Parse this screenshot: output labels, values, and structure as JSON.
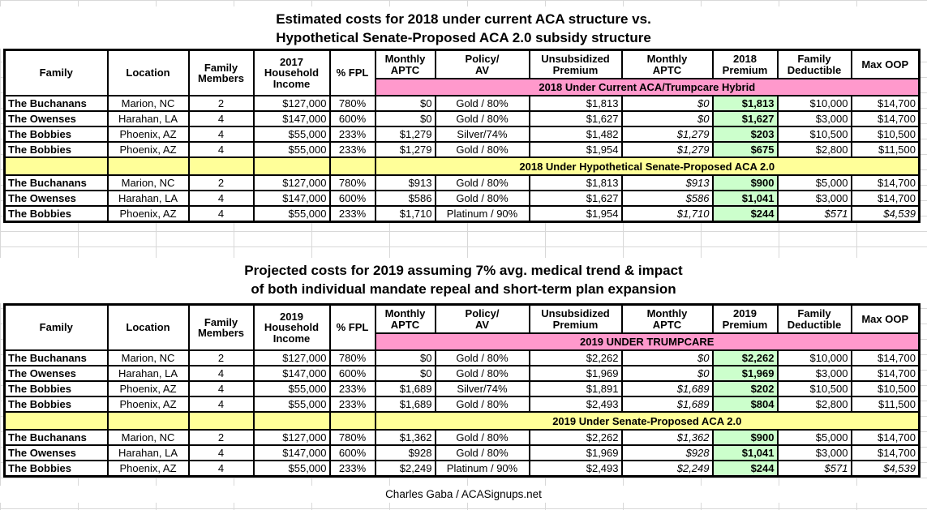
{
  "titles": {
    "table1_line1": "Estimated costs for 2018 under current ACA structure vs.",
    "table1_line2": "Hypothetical Senate-Proposed ACA 2.0 subsidy structure",
    "table2_line1": "Projected costs for 2019 assuming 7% avg. medical trend & impact",
    "table2_line2": "of both individual mandate repeal and short-term plan expansion"
  },
  "footer": "Charles Gaba / ACASignups.net",
  "colors": {
    "banner_pink": "#FF99CC",
    "banner_yellow": "#FFFF99",
    "premium_green": "#CCFFCC",
    "gridline": "#D8D8D8",
    "border": "#000000"
  },
  "tables": [
    {
      "id": "2018",
      "headers": [
        "Family",
        "Location",
        "Family\nMembers",
        "2017\nHousehold\nIncome",
        "% FPL",
        "Monthly\nAPTC",
        "Policy/\nAV",
        "Unsubsidized\nPremium",
        "Monthly\nAPTC",
        "2018\nPremium",
        "Family\nDeductible",
        "Max OOP"
      ],
      "sections": [
        {
          "banner": "2018 Under Current ACA/Trumpcare Hybrid",
          "style": "pink",
          "rows": [
            {
              "cells": [
                "The Buchanans",
                "Marion, NC",
                "2",
                "$127,000",
                "780%",
                "$0",
                "Gold / 80%",
                "$1,813",
                "$0",
                "$1,813",
                "$10,000",
                "$14,700"
              ],
              "italic_last_two": false
            },
            {
              "cells": [
                "The Owenses",
                "Harahan, LA",
                "4",
                "$147,000",
                "600%",
                "$0",
                "Gold / 80%",
                "$1,627",
                "$0",
                "$1,627",
                "$3,000",
                "$14,700"
              ],
              "italic_last_two": false
            },
            {
              "cells": [
                "The Bobbies",
                "Phoenix, AZ",
                "4",
                "$55,000",
                "233%",
                "$1,279",
                "Silver/74%",
                "$1,482",
                "$1,279",
                "$203",
                "$10,500",
                "$10,500"
              ],
              "italic_last_two": false
            },
            {
              "cells": [
                "The Bobbies",
                "Phoenix, AZ",
                "4",
                "$55,000",
                "233%",
                "$1,279",
                "Gold / 80%",
                "$1,954",
                "$1,279",
                "$675",
                "$2,800",
                "$11,500"
              ],
              "italic_last_two": false
            }
          ]
        },
        {
          "banner": "2018 Under Hypothetical Senate-Proposed ACA 2.0",
          "style": "yellow",
          "rows": [
            {
              "cells": [
                "The Buchanans",
                "Marion, NC",
                "2",
                "$127,000",
                "780%",
                "$913",
                "Gold / 80%",
                "$1,813",
                "$913",
                "$900",
                "$5,000",
                "$14,700"
              ],
              "italic_last_two": false
            },
            {
              "cells": [
                "The Owenses",
                "Harahan, LA",
                "4",
                "$147,000",
                "600%",
                "$586",
                "Gold / 80%",
                "$1,627",
                "$586",
                "$1,041",
                "$3,000",
                "$14,700"
              ],
              "italic_last_two": false
            },
            {
              "cells": [
                "The Bobbies",
                "Phoenix, AZ",
                "4",
                "$55,000",
                "233%",
                "$1,710",
                "Platinum / 90%",
                "$1,954",
                "$1,710",
                "$244",
                "$571",
                "$4,539"
              ],
              "italic_last_two": true
            }
          ]
        }
      ]
    },
    {
      "id": "2019",
      "headers": [
        "Family",
        "Location",
        "Family\nMembers",
        "2019\nHousehold\nIncome",
        "% FPL",
        "Monthly\nAPTC",
        "Policy/\nAV",
        "Unsubsidized\nPremium",
        "Monthly\nAPTC",
        "2019\nPremium",
        "Family\nDeductible",
        "Max OOP"
      ],
      "sections": [
        {
          "banner": "2019 UNDER TRUMPCARE",
          "style": "pink",
          "rows": [
            {
              "cells": [
                "The Buchanans",
                "Marion, NC",
                "2",
                "$127,000",
                "780%",
                "$0",
                "Gold / 80%",
                "$2,262",
                "$0",
                "$2,262",
                "$10,000",
                "$14,700"
              ],
              "italic_last_two": false
            },
            {
              "cells": [
                "The Owenses",
                "Harahan, LA",
                "4",
                "$147,000",
                "600%",
                "$0",
                "Gold / 80%",
                "$1,969",
                "$0",
                "$1,969",
                "$3,000",
                "$14,700"
              ],
              "italic_last_two": false
            },
            {
              "cells": [
                "The Bobbies",
                "Phoenix, AZ",
                "4",
                "$55,000",
                "233%",
                "$1,689",
                "Silver/74%",
                "$1,891",
                "$1,689",
                "$202",
                "$10,500",
                "$10,500"
              ],
              "italic_last_two": false
            },
            {
              "cells": [
                "The Bobbies",
                "Phoenix, AZ",
                "4",
                "$55,000",
                "233%",
                "$1,689",
                "Gold / 80%",
                "$2,493",
                "$1,689",
                "$804",
                "$2,800",
                "$11,500"
              ],
              "italic_last_two": false
            }
          ]
        },
        {
          "banner": "2019 Under Senate-Proposed ACA 2.0",
          "style": "yellow",
          "rows": [
            {
              "cells": [
                "The Buchanans",
                "Marion, NC",
                "2",
                "$127,000",
                "780%",
                "$1,362",
                "Gold / 80%",
                "$2,262",
                "$1,362",
                "$900",
                "$5,000",
                "$14,700"
              ],
              "italic_last_two": false
            },
            {
              "cells": [
                "The Owenses",
                "Harahan, LA",
                "4",
                "$147,000",
                "600%",
                "$928",
                "Gold / 80%",
                "$1,969",
                "$928",
                "$1,041",
                "$3,000",
                "$14,700"
              ],
              "italic_last_two": false
            },
            {
              "cells": [
                "The Bobbies",
                "Phoenix, AZ",
                "4",
                "$55,000",
                "233%",
                "$2,249",
                "Platinum / 90%",
                "$2,493",
                "$2,249",
                "$244",
                "$571",
                "$4,539"
              ],
              "italic_last_two": true
            }
          ]
        }
      ]
    }
  ]
}
